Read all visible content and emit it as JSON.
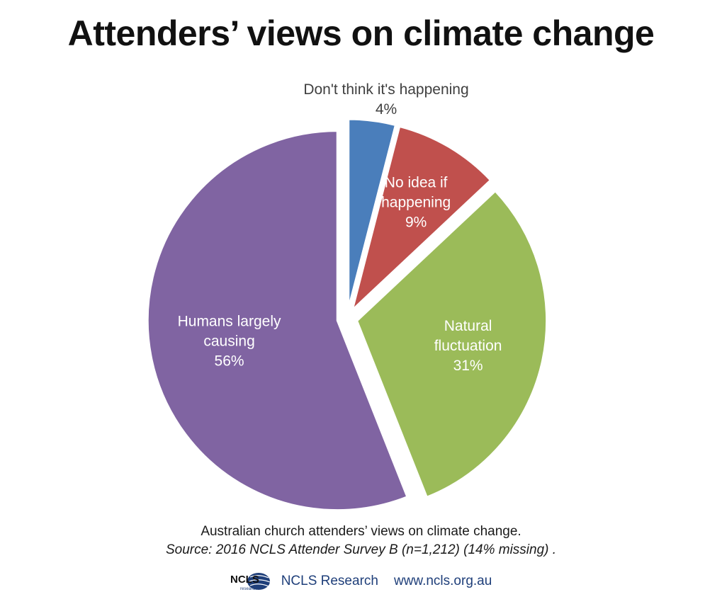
{
  "chart_data": {
    "type": "pie",
    "title": "Attenders’ views on climate change",
    "slices": [
      {
        "label": "Don't think it's happening",
        "value": 4,
        "value_label": "4%",
        "color": "#4a7ebb"
      },
      {
        "label": "No idea if happening",
        "value": 9,
        "value_label": "9%",
        "color": "#c0504d"
      },
      {
        "label": "Natural fluctuation",
        "value": 31,
        "value_label": "31%",
        "color": "#9bbb59"
      },
      {
        "label": "Humans largely causing",
        "value": 56,
        "value_label": "56%",
        "color": "#8064a2"
      }
    ],
    "start_direction": "12 o'clock",
    "direction": "clockwise",
    "exploded": true
  },
  "caption": {
    "line1": "Australian church attenders’ views on climate change.",
    "source": "Source: 2016 NCLS Attender Survey B (n=1,212) (14% missing) ."
  },
  "footer": {
    "logo_text": "NCLS",
    "logo_subtext": "research",
    "org": "NCLS Research",
    "url": "www.ncls.org.au"
  },
  "colors": {
    "title": "#111111",
    "footer_text": "#1f3f7a"
  }
}
